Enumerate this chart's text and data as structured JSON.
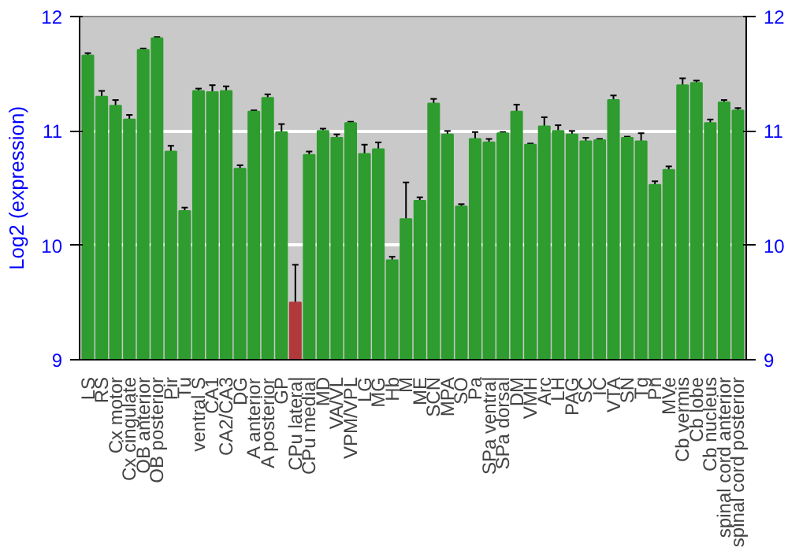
{
  "chart_data": {
    "type": "bar",
    "ylabel": "Log2 (expression)",
    "categories": [
      "LS",
      "RS",
      "Cx motor",
      "Cx cingulate",
      "OB anterior",
      "OB posterior",
      "Pir",
      "Tu",
      "ventral S",
      "CA1",
      "CA2/CA3",
      "DG",
      "A anterior",
      "A posterior",
      "GP",
      "CPu lateral",
      "CPu medial",
      "MD",
      "VA/VL",
      "VPM/VPL",
      "LG",
      "MG",
      "Hb",
      "M",
      "ME",
      "SCN",
      "MPA",
      "SO",
      "Pa",
      "SPa ventral",
      "SPa dorsal",
      "DM",
      "VMH",
      "Arc",
      "LH",
      "PAG",
      "SC",
      "IC",
      "VTA",
      "SN",
      "Tg",
      "Pn",
      "MVe",
      "Cb vermis",
      "Cb lobe",
      "Cb nucleus",
      "spinal cord anterior",
      "spinal cord posterior"
    ],
    "values": [
      11.66,
      11.3,
      11.22,
      11.1,
      11.71,
      11.81,
      10.82,
      10.3,
      11.35,
      11.34,
      11.35,
      10.67,
      11.17,
      11.29,
      10.99,
      9.5,
      10.79,
      11.0,
      10.94,
      11.07,
      10.8,
      10.84,
      9.87,
      10.23,
      10.39,
      11.24,
      10.97,
      10.34,
      10.93,
      10.9,
      10.98,
      11.17,
      10.88,
      11.04,
      11.0,
      10.97,
      10.91,
      10.92,
      11.27,
      10.94,
      10.91,
      10.53,
      10.66,
      11.4,
      11.42,
      11.07,
      11.25,
      11.18
    ],
    "errors": [
      0.02,
      0.05,
      0.05,
      0.04,
      0.01,
      0.01,
      0.05,
      0.03,
      0.02,
      0.06,
      0.04,
      0.03,
      0.01,
      0.03,
      0.07,
      0.33,
      0.03,
      0.02,
      0.03,
      0.01,
      0.08,
      0.06,
      0.03,
      0.32,
      0.03,
      0.04,
      0.03,
      0.02,
      0.06,
      0.03,
      0.01,
      0.06,
      0.01,
      0.08,
      0.05,
      0.03,
      0.03,
      0.01,
      0.04,
      0.01,
      0.07,
      0.03,
      0.03,
      0.06,
      0.02,
      0.03,
      0.02,
      0.02
    ],
    "colors": [
      "#2e9c2e",
      "#2e9c2e",
      "#2e9c2e",
      "#2e9c2e",
      "#2e9c2e",
      "#2e9c2e",
      "#2e9c2e",
      "#2e9c2e",
      "#2e9c2e",
      "#2e9c2e",
      "#2e9c2e",
      "#2e9c2e",
      "#2e9c2e",
      "#2e9c2e",
      "#2e9c2e",
      "#b03a3a",
      "#2e9c2e",
      "#2e9c2e",
      "#2e9c2e",
      "#2e9c2e",
      "#2e9c2e",
      "#2e9c2e",
      "#2e9c2e",
      "#2e9c2e",
      "#2e9c2e",
      "#2e9c2e",
      "#2e9c2e",
      "#2e9c2e",
      "#2e9c2e",
      "#2e9c2e",
      "#2e9c2e",
      "#2e9c2e",
      "#2e9c2e",
      "#2e9c2e",
      "#2e9c2e",
      "#2e9c2e",
      "#2e9c2e",
      "#2e9c2e",
      "#2e9c2e",
      "#2e9c2e",
      "#2e9c2e",
      "#2e9c2e",
      "#2e9c2e",
      "#2e9c2e",
      "#2e9c2e",
      "#2e9c2e",
      "#2e9c2e",
      "#2e9c2e"
    ],
    "ylim": [
      9,
      12
    ],
    "yticks": [
      9,
      10,
      11,
      12
    ],
    "y2lim": [
      9,
      12
    ],
    "y2ticks": [
      9,
      10,
      11,
      12
    ],
    "grid": "y"
  }
}
